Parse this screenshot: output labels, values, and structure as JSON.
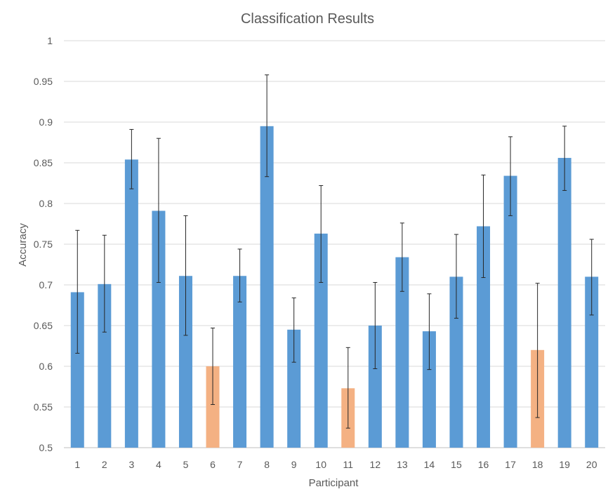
{
  "chart_data": {
    "type": "bar",
    "title": "Classification Results",
    "xlabel": "Participant",
    "ylabel": "Accuracy",
    "ylim": [
      0.5,
      1
    ],
    "yticks": [
      "0.5",
      "0.55",
      "0.6",
      "0.65",
      "0.7",
      "0.75",
      "0.8",
      "0.85",
      "0.9",
      "0.95",
      "1"
    ],
    "grid": true,
    "legend": "none",
    "categories": [
      "1",
      "2",
      "3",
      "4",
      "5",
      "6",
      "7",
      "8",
      "9",
      "10",
      "11",
      "12",
      "13",
      "14",
      "15",
      "16",
      "17",
      "18",
      "19",
      "20"
    ],
    "values": [
      0.691,
      0.701,
      0.854,
      0.791,
      0.711,
      0.6,
      0.711,
      0.895,
      0.645,
      0.763,
      0.573,
      0.65,
      0.734,
      0.643,
      0.71,
      0.772,
      0.834,
      0.62,
      0.856,
      0.71
    ],
    "error_low": [
      0.616,
      0.642,
      0.818,
      0.703,
      0.638,
      0.553,
      0.679,
      0.833,
      0.605,
      0.703,
      0.524,
      0.597,
      0.692,
      0.596,
      0.659,
      0.709,
      0.785,
      0.537,
      0.816,
      0.663
    ],
    "error_high": [
      0.767,
      0.761,
      0.891,
      0.88,
      0.785,
      0.647,
      0.744,
      0.958,
      0.684,
      0.822,
      0.623,
      0.703,
      0.776,
      0.689,
      0.762,
      0.835,
      0.882,
      0.702,
      0.895,
      0.756
    ],
    "highlighted": [
      "6",
      "11",
      "18"
    ],
    "colors": {
      "default": "#5b9bd5",
      "highlight": "#f4b183"
    }
  }
}
